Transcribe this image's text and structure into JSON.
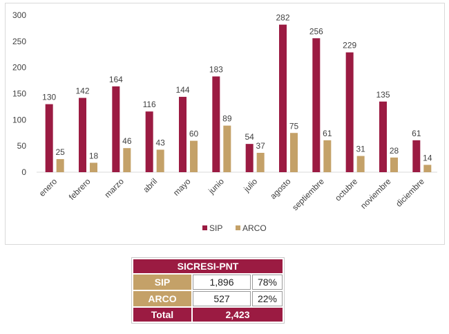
{
  "chart_data": {
    "type": "bar",
    "categories": [
      "enero",
      "febrero",
      "marzo",
      "abril",
      "mayo",
      "junio",
      "julio",
      "agosto",
      "septiembre",
      "octubre",
      "noviembre",
      "diciembre"
    ],
    "series": [
      {
        "name": "SIP",
        "values": [
          130,
          142,
          164,
          116,
          144,
          183,
          54,
          282,
          256,
          229,
          135,
          61
        ],
        "color": "#9b1b42"
      },
      {
        "name": "ARCO",
        "values": [
          25,
          18,
          46,
          43,
          60,
          89,
          37,
          75,
          61,
          31,
          28,
          14
        ],
        "color": "#c4a168"
      }
    ],
    "ylim": [
      0,
      300
    ],
    "yticks": [
      0,
      50,
      100,
      150,
      200,
      250,
      300
    ],
    "grid": false,
    "legend": "bottom",
    "data_labels": true
  },
  "summary": {
    "title": "SICRESI-PNT",
    "rows": [
      {
        "label": "SIP",
        "value": "1,896",
        "pct": "78%"
      },
      {
        "label": "ARCO",
        "value": "527",
        "pct": "22%"
      }
    ],
    "total_label": "Total",
    "total_value": "2,423"
  }
}
